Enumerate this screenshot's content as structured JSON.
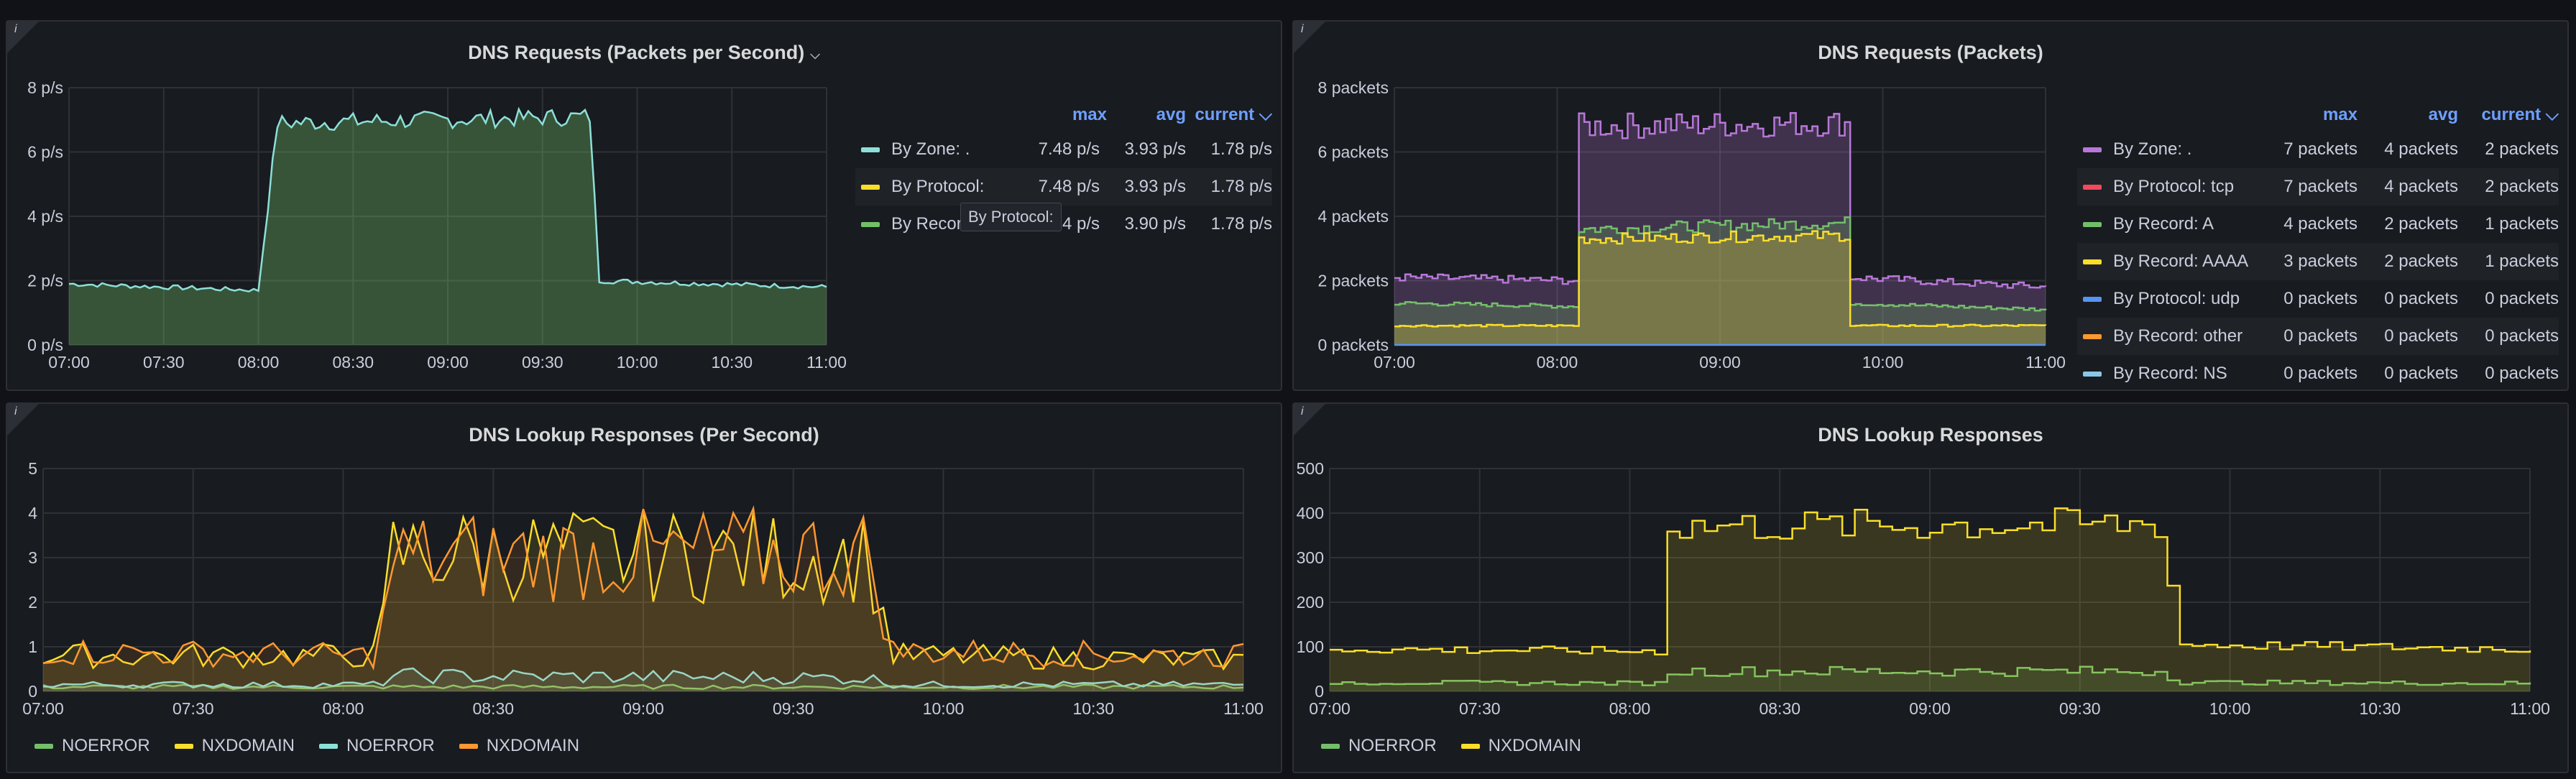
{
  "panels": {
    "p1": {
      "title": "DNS Requests (Packets per Second)",
      "chevron": "⌵"
    },
    "p2": {
      "title": "DNS Requests (Packets)"
    },
    "p3": {
      "title": "DNS Lookup Responses (Per Second)"
    },
    "p4": {
      "title": "DNS Lookup Responses"
    }
  },
  "info_glyph": "i",
  "colors": {
    "green": "#73bf69",
    "yellow": "#fade2a",
    "cyan": "#8ab8ff",
    "teal": "#8ddfd9",
    "orange": "#ff9830",
    "purple": "#b877d9",
    "red": "#f2495c",
    "blue": "#5794f2",
    "lightblue": "#8ac6e6"
  },
  "legend1": {
    "headers": {
      "max": "max",
      "avg": "avg",
      "current": "current ⌵"
    },
    "rows": [
      {
        "name": "By Zone: .",
        "color": "#8ddfd9",
        "max": "7.48 p/s",
        "avg": "3.93 p/s",
        "current": "1.78 p/s"
      },
      {
        "name": "By Protocol:",
        "color": "#fade2a",
        "max": "7.48 p/s",
        "avg": "3.93 p/s",
        "current": "1.78 p/s"
      },
      {
        "name": "By Record:",
        "color": "#73bf69",
        "max": "7.34 p/s",
        "avg": "3.90 p/s",
        "current": "1.78 p/s"
      }
    ],
    "tooltip": "By Protocol:"
  },
  "legend2": {
    "headers": {
      "max": "max",
      "avg": "avg",
      "current": "current ⌵"
    },
    "rows": [
      {
        "name": "By Zone: .",
        "color": "#b877d9",
        "max": "7 packets",
        "avg": "4 packets",
        "current": "2 packets"
      },
      {
        "name": "By Protocol: tcp",
        "color": "#f2495c",
        "max": "7 packets",
        "avg": "4 packets",
        "current": "2 packets"
      },
      {
        "name": "By Record: A",
        "color": "#73bf69",
        "max": "4 packets",
        "avg": "2 packets",
        "current": "1 packets"
      },
      {
        "name": "By Record: AAAA",
        "color": "#fade2a",
        "max": "3 packets",
        "avg": "2 packets",
        "current": "1 packets"
      },
      {
        "name": "By Protocol: udp",
        "color": "#5794f2",
        "max": "0 packets",
        "avg": "0 packets",
        "current": "0 packets"
      },
      {
        "name": "By Record: other",
        "color": "#ff9830",
        "max": "0 packets",
        "avg": "0 packets",
        "current": "0 packets"
      },
      {
        "name": "By Record: NS",
        "color": "#8ac6e6",
        "max": "0 packets",
        "avg": "0 packets",
        "current": "0 packets"
      }
    ]
  },
  "legend3": [
    {
      "name": "NOERROR",
      "color": "#73bf69"
    },
    {
      "name": "NXDOMAIN",
      "color": "#fade2a"
    },
    {
      "name": "NOERROR",
      "color": "#8ddfd9"
    },
    {
      "name": "NXDOMAIN",
      "color": "#ff9830"
    }
  ],
  "legend4": [
    {
      "name": "NOERROR",
      "color": "#73bf69"
    },
    {
      "name": "NXDOMAIN",
      "color": "#fade2a"
    }
  ],
  "chart_data": [
    {
      "type": "line",
      "title": "DNS Requests (Packets per Second)",
      "x_ticks": [
        "07:00",
        "07:30",
        "08:00",
        "08:30",
        "09:00",
        "09:30",
        "10:00",
        "10:30",
        "11:00"
      ],
      "y_ticks": [
        "0 p/s",
        "2 p/s",
        "4 p/s",
        "6 p/s",
        "8 p/s"
      ],
      "ylim": [
        0,
        8
      ],
      "series": [
        {
          "name": "By Zone: .",
          "color": "#8ddfd9",
          "fill": "#73bf69",
          "x": [
            "07:00",
            "08:00",
            "08:06",
            "09:45",
            "09:48",
            "11:00"
          ],
          "y": [
            1.9,
            1.7,
            6.9,
            7.1,
            2.0,
            1.8
          ]
        }
      ]
    },
    {
      "type": "line",
      "title": "DNS Requests (Packets)",
      "x_ticks": [
        "07:00",
        "08:00",
        "09:00",
        "10:00",
        "11:00"
      ],
      "y_ticks": [
        "0 packets",
        "2 packets",
        "4 packets",
        "6 packets",
        "8 packets"
      ],
      "ylim": [
        0,
        8
      ],
      "series": [
        {
          "name": "By Zone: .",
          "color": "#b877d9",
          "x": [
            "07:00",
            "08:06",
            "08:07",
            "09:46",
            "09:47",
            "11:00"
          ],
          "y": [
            2.1,
            2.0,
            6.8,
            6.9,
            2.1,
            1.8
          ]
        },
        {
          "name": "By Record: A",
          "color": "#73bf69",
          "x": [
            "07:00",
            "08:06",
            "08:07",
            "09:46",
            "09:47",
            "11:00"
          ],
          "y": [
            1.3,
            1.2,
            3.6,
            3.8,
            1.3,
            1.1
          ]
        },
        {
          "name": "By Record: AAAA",
          "color": "#fade2a",
          "x": [
            "07:00",
            "08:06",
            "08:07",
            "09:46",
            "09:47",
            "11:00"
          ],
          "y": [
            0.6,
            0.6,
            3.3,
            3.4,
            0.6,
            0.6
          ]
        },
        {
          "name": "By Protocol: udp",
          "color": "#5794f2",
          "x": [
            "07:00",
            "11:00"
          ],
          "y": [
            0,
            0
          ]
        }
      ]
    },
    {
      "type": "line",
      "title": "DNS Lookup Responses (Per Second)",
      "x_ticks": [
        "07:00",
        "07:30",
        "08:00",
        "08:30",
        "09:00",
        "09:30",
        "10:00",
        "10:30",
        "11:00"
      ],
      "y_ticks": [
        "0",
        "1",
        "2",
        "3",
        "4",
        "5"
      ],
      "ylim": [
        0,
        5
      ],
      "series": [
        {
          "name": "NOERROR",
          "color": "#73bf69",
          "x": [
            "07:00",
            "11:00"
          ],
          "y": [
            0.1,
            0.1
          ]
        },
        {
          "name": "NXDOMAIN",
          "color": "#fade2a",
          "x": [
            "07:00",
            "08:07",
            "08:10",
            "09:45",
            "09:50",
            "11:00"
          ],
          "y": [
            0.8,
            0.8,
            3.1,
            3.0,
            0.8,
            0.7
          ]
        },
        {
          "name": "NOERROR",
          "color": "#8ddfd9",
          "x": [
            "07:00",
            "08:07",
            "08:10",
            "09:45",
            "09:50",
            "11:00"
          ],
          "y": [
            0.15,
            0.15,
            0.35,
            0.3,
            0.15,
            0.15
          ]
        },
        {
          "name": "NXDOMAIN",
          "color": "#ff9830",
          "x": [
            "07:00",
            "08:07",
            "08:10",
            "09:45",
            "09:50",
            "11:00"
          ],
          "y": [
            0.9,
            0.8,
            3.0,
            3.1,
            0.9,
            0.8
          ]
        }
      ]
    },
    {
      "type": "line",
      "title": "DNS Lookup Responses",
      "x_ticks": [
        "07:00",
        "07:30",
        "08:00",
        "08:30",
        "09:00",
        "09:30",
        "10:00",
        "10:30",
        "11:00"
      ],
      "y_ticks": [
        "0",
        "100",
        "200",
        "300",
        "400",
        "500"
      ],
      "ylim": [
        0,
        500
      ],
      "series": [
        {
          "name": "NOERROR",
          "color": "#73bf69",
          "x": [
            "07:00",
            "08:05",
            "08:06",
            "09:47",
            "09:48",
            "11:00"
          ],
          "y": [
            20,
            18,
            45,
            45,
            20,
            18
          ]
        },
        {
          "name": "NXDOMAIN",
          "color": "#fade2a",
          "x": [
            "07:00",
            "08:05",
            "08:06",
            "09:47",
            "09:48",
            "11:00"
          ],
          "y": [
            95,
            90,
            370,
            375,
            105,
            95
          ]
        }
      ]
    }
  ]
}
